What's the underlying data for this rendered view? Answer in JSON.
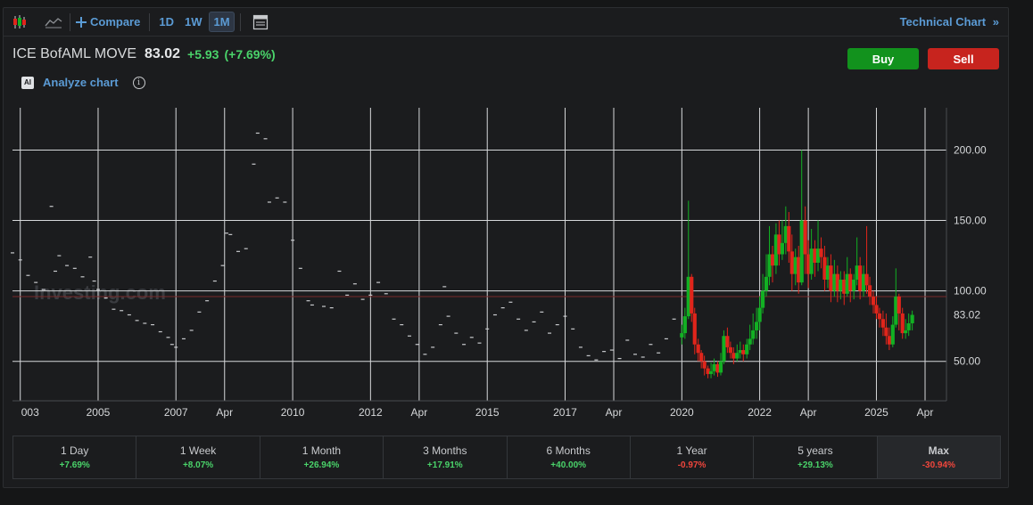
{
  "toolbar": {
    "compare_label": "Compare",
    "intervals": [
      "1D",
      "1W",
      "1M"
    ],
    "active_interval": "1M",
    "technical_chart_label": "Technical Chart",
    "technical_chart_chevron": "»"
  },
  "instrument": {
    "name": "ICE BofAML MOVE",
    "last": "83.02",
    "change": "+5.93",
    "change_pct": "(+7.69%)",
    "direction": "up"
  },
  "analyze": {
    "badge": "AI",
    "label": "Analyze chart",
    "info_glyph": "i"
  },
  "trade": {
    "buy_label": "Buy",
    "sell_label": "Sell"
  },
  "colors": {
    "up": "#12b023",
    "down": "#e0251b",
    "positive_text": "#4ad36a",
    "negative_text": "#f0463c",
    "accent": "#5b9bd5",
    "buy": "#12921d",
    "sell": "#c7241e",
    "reference_line": "#7a2a2a"
  },
  "chart_data": {
    "type": "candlestick",
    "x_tick_labels": [
      "003",
      "2005",
      "2007",
      "Apr",
      "2010",
      "2012",
      "Apr",
      "2015",
      "2017",
      "Apr",
      "2020",
      "2022",
      "Apr",
      "2025",
      "Apr"
    ],
    "x_tick_years": [
      2003.0,
      2005.0,
      2007.0,
      2008.25,
      2010.0,
      2012.0,
      2013.25,
      2015.0,
      2017.0,
      2018.25,
      2020.0,
      2022.0,
      2023.25,
      2025.0,
      2026.25
    ],
    "y_ticks": [
      50,
      100,
      150,
      200
    ],
    "y_tick_labels": [
      "50.00",
      "100.00",
      "150.00",
      "200.00"
    ],
    "ylim": [
      22,
      230
    ],
    "xlim": [
      2002.8,
      2026.8
    ],
    "last_price_label": "83.02",
    "last_price": 83.02,
    "reference_price": 96,
    "grid": true,
    "watermark": "Investing.com",
    "monthly_closes_pre2020": [
      [
        2002.8,
        127
      ],
      [
        2003.0,
        122
      ],
      [
        2003.2,
        111
      ],
      [
        2003.4,
        106
      ],
      [
        2003.6,
        101
      ],
      [
        2003.8,
        160
      ],
      [
        2003.9,
        114
      ],
      [
        2004.0,
        125
      ],
      [
        2004.2,
        118
      ],
      [
        2004.4,
        116
      ],
      [
        2004.6,
        110
      ],
      [
        2004.8,
        124
      ],
      [
        2004.9,
        107
      ],
      [
        2005.0,
        101
      ],
      [
        2005.2,
        95
      ],
      [
        2005.4,
        87
      ],
      [
        2005.6,
        86
      ],
      [
        2005.8,
        83
      ],
      [
        2006.0,
        79
      ],
      [
        2006.2,
        77
      ],
      [
        2006.4,
        76
      ],
      [
        2006.6,
        71
      ],
      [
        2006.8,
        67
      ],
      [
        2006.9,
        62
      ],
      [
        2007.0,
        60
      ],
      [
        2007.2,
        66
      ],
      [
        2007.4,
        72
      ],
      [
        2007.6,
        85
      ],
      [
        2007.8,
        93
      ],
      [
        2008.0,
        107
      ],
      [
        2008.2,
        118
      ],
      [
        2008.3,
        141
      ],
      [
        2008.4,
        140
      ],
      [
        2008.6,
        128
      ],
      [
        2008.8,
        130
      ],
      [
        2009.0,
        190
      ],
      [
        2009.1,
        212
      ],
      [
        2009.3,
        208
      ],
      [
        2009.4,
        163
      ],
      [
        2009.6,
        166
      ],
      [
        2009.8,
        163
      ],
      [
        2010.0,
        136
      ],
      [
        2010.2,
        116
      ],
      [
        2010.4,
        93
      ],
      [
        2010.5,
        90
      ],
      [
        2010.8,
        89
      ],
      [
        2011.0,
        88
      ],
      [
        2011.2,
        114
      ],
      [
        2011.4,
        97
      ],
      [
        2011.6,
        105
      ],
      [
        2011.8,
        94
      ],
      [
        2012.0,
        97
      ],
      [
        2012.2,
        106
      ],
      [
        2012.4,
        98
      ],
      [
        2012.6,
        80
      ],
      [
        2012.8,
        76
      ],
      [
        2013.0,
        68
      ],
      [
        2013.2,
        62
      ],
      [
        2013.4,
        55
      ],
      [
        2013.6,
        60
      ],
      [
        2013.8,
        76
      ],
      [
        2013.9,
        103
      ],
      [
        2014.0,
        82
      ],
      [
        2014.2,
        70
      ],
      [
        2014.4,
        62
      ],
      [
        2014.6,
        67
      ],
      [
        2014.8,
        63
      ],
      [
        2015.0,
        73
      ],
      [
        2015.2,
        83
      ],
      [
        2015.4,
        88
      ],
      [
        2015.6,
        92
      ],
      [
        2015.8,
        80
      ],
      [
        2016.0,
        72
      ],
      [
        2016.2,
        78
      ],
      [
        2016.4,
        85
      ],
      [
        2016.6,
        70
      ],
      [
        2016.8,
        76
      ],
      [
        2017.0,
        82
      ],
      [
        2017.2,
        73
      ],
      [
        2017.4,
        60
      ],
      [
        2017.6,
        54
      ],
      [
        2017.8,
        51
      ],
      [
        2018.0,
        57
      ],
      [
        2018.2,
        58
      ],
      [
        2018.4,
        52
      ],
      [
        2018.6,
        65
      ],
      [
        2018.8,
        55
      ],
      [
        2019.0,
        53
      ],
      [
        2019.2,
        62
      ],
      [
        2019.4,
        56
      ],
      [
        2019.6,
        66
      ],
      [
        2019.8,
        80
      ]
    ],
    "candles_2020_onward": [
      [
        2020.0,
        67,
        70,
        76,
        62
      ],
      [
        2020.08,
        70,
        82,
        88,
        66
      ],
      [
        2020.17,
        82,
        110,
        164,
        80
      ],
      [
        2020.25,
        110,
        84,
        112,
        78
      ],
      [
        2020.33,
        84,
        62,
        88,
        55
      ],
      [
        2020.42,
        62,
        56,
        66,
        50
      ],
      [
        2020.5,
        56,
        50,
        58,
        45
      ],
      [
        2020.58,
        50,
        45,
        54,
        40
      ],
      [
        2020.67,
        45,
        41,
        47,
        38
      ],
      [
        2020.75,
        41,
        43,
        49,
        38
      ],
      [
        2020.83,
        43,
        48,
        52,
        40
      ],
      [
        2020.92,
        48,
        42,
        50,
        39
      ],
      [
        2021.0,
        42,
        50,
        56,
        40
      ],
      [
        2021.08,
        50,
        68,
        72,
        48
      ],
      [
        2021.17,
        68,
        60,
        74,
        56
      ],
      [
        2021.25,
        60,
        56,
        64,
        52
      ],
      [
        2021.33,
        56,
        52,
        60,
        48
      ],
      [
        2021.42,
        52,
        56,
        62,
        50
      ],
      [
        2021.5,
        56,
        58,
        64,
        52
      ],
      [
        2021.58,
        58,
        55,
        62,
        50
      ],
      [
        2021.67,
        55,
        62,
        66,
        52
      ],
      [
        2021.75,
        62,
        66,
        76,
        58
      ],
      [
        2021.83,
        66,
        72,
        84,
        62
      ],
      [
        2021.92,
        72,
        78,
        88,
        66
      ],
      [
        2022.0,
        78,
        88,
        96,
        72
      ],
      [
        2022.08,
        88,
        100,
        112,
        84
      ],
      [
        2022.17,
        100,
        110,
        126,
        96
      ],
      [
        2022.25,
        110,
        126,
        146,
        104
      ],
      [
        2022.33,
        126,
        118,
        132,
        106
      ],
      [
        2022.42,
        118,
        140,
        148,
        112
      ],
      [
        2022.5,
        140,
        126,
        150,
        118
      ],
      [
        2022.58,
        126,
        134,
        150,
        122
      ],
      [
        2022.67,
        134,
        146,
        160,
        126
      ],
      [
        2022.75,
        146,
        128,
        156,
        120
      ],
      [
        2022.83,
        128,
        112,
        140,
        100
      ],
      [
        2022.92,
        112,
        124,
        130,
        104
      ],
      [
        2023.0,
        124,
        106,
        132,
        98
      ],
      [
        2023.08,
        106,
        150,
        200,
        104
      ],
      [
        2023.17,
        150,
        126,
        160,
        112
      ],
      [
        2023.25,
        126,
        112,
        136,
        102
      ],
      [
        2023.33,
        112,
        130,
        144,
        108
      ],
      [
        2023.42,
        130,
        120,
        136,
        110
      ],
      [
        2023.5,
        120,
        130,
        150,
        114
      ],
      [
        2023.58,
        130,
        124,
        138,
        116
      ],
      [
        2023.67,
        124,
        108,
        132,
        100
      ],
      [
        2023.75,
        108,
        118,
        124,
        102
      ],
      [
        2023.83,
        118,
        100,
        126,
        92
      ],
      [
        2023.92,
        100,
        112,
        122,
        96
      ],
      [
        2024.0,
        112,
        100,
        118,
        92
      ],
      [
        2024.08,
        100,
        108,
        114,
        94
      ],
      [
        2024.17,
        108,
        98,
        114,
        90
      ],
      [
        2024.25,
        98,
        112,
        124,
        96
      ],
      [
        2024.33,
        112,
        100,
        116,
        92
      ],
      [
        2024.42,
        100,
        108,
        112,
        94
      ],
      [
        2024.5,
        108,
        118,
        138,
        104
      ],
      [
        2024.58,
        118,
        100,
        124,
        94
      ],
      [
        2024.67,
        100,
        112,
        118,
        96
      ],
      [
        2024.75,
        112,
        104,
        146,
        98
      ],
      [
        2024.83,
        104,
        96,
        110,
        90
      ],
      [
        2024.92,
        96,
        90,
        100,
        84
      ],
      [
        2025.0,
        90,
        84,
        96,
        80
      ],
      [
        2025.08,
        84,
        80,
        88,
        74
      ],
      [
        2025.17,
        80,
        74,
        86,
        68
      ],
      [
        2025.25,
        74,
        68,
        84,
        62
      ],
      [
        2025.33,
        68,
        62,
        74,
        58
      ],
      [
        2025.42,
        62,
        76,
        82,
        60
      ],
      [
        2025.5,
        76,
        96,
        116,
        74
      ],
      [
        2025.58,
        96,
        84,
        98,
        72
      ],
      [
        2025.67,
        84,
        70,
        88,
        66
      ],
      [
        2025.75,
        70,
        72,
        80,
        66
      ],
      [
        2025.83,
        72,
        77,
        84,
        68
      ],
      [
        2025.92,
        77,
        83,
        86,
        72
      ]
    ]
  },
  "performance": [
    {
      "label": "1 Day",
      "value": "+7.69%",
      "sign": "up"
    },
    {
      "label": "1 Week",
      "value": "+8.07%",
      "sign": "up"
    },
    {
      "label": "1 Month",
      "value": "+26.94%",
      "sign": "up"
    },
    {
      "label": "3 Months",
      "value": "+17.91%",
      "sign": "up"
    },
    {
      "label": "6 Months",
      "value": "+40.00%",
      "sign": "up"
    },
    {
      "label": "1 Year",
      "value": "-0.97%",
      "sign": "down"
    },
    {
      "label": "5 years",
      "value": "+29.13%",
      "sign": "up"
    },
    {
      "label": "Max",
      "value": "-30.94%",
      "sign": "down"
    }
  ]
}
